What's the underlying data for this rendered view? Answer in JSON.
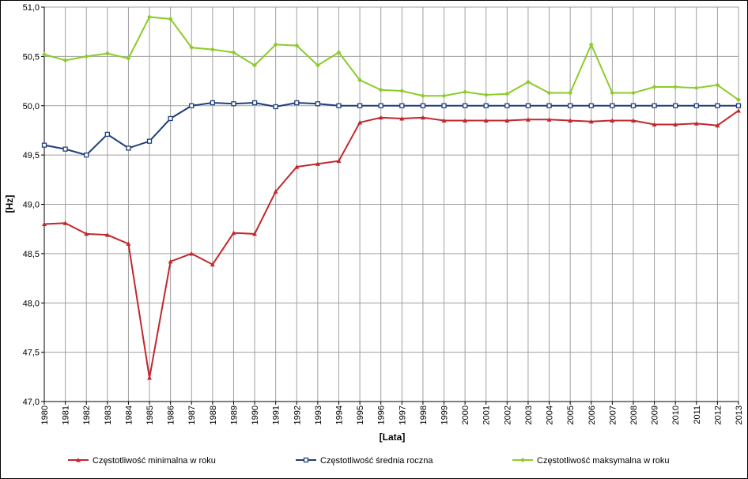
{
  "chart_data": {
    "type": "line",
    "xlabel": "[Lata]",
    "ylabel": "[Hz]",
    "ylim": [
      47.0,
      51.0
    ],
    "yticks": [
      "47,0",
      "47,5",
      "48,0",
      "48,5",
      "49,0",
      "49,5",
      "50,0",
      "50,5",
      "51,0"
    ],
    "grid": true,
    "legend_position": "bottom",
    "categories": [
      "1980",
      "1981",
      "1982",
      "1983",
      "1984",
      "1985",
      "1986",
      "1987",
      "1988",
      "1989",
      "1990",
      "1991",
      "1992",
      "1993",
      "1994",
      "1995",
      "1996",
      "1997",
      "1998",
      "1999",
      "2000",
      "2001",
      "2002",
      "2003",
      "2004",
      "2005",
      "2006",
      "2007",
      "2008",
      "2009",
      "2010",
      "2011",
      "2012",
      "2013"
    ],
    "series": [
      {
        "name": "Częstotliwość minimalna w roku",
        "color": "#c0282e",
        "marker": "triangle",
        "values": [
          48.8,
          48.81,
          48.7,
          48.69,
          48.6,
          47.24,
          48.42,
          48.5,
          48.39,
          48.71,
          48.7,
          49.13,
          49.38,
          49.41,
          49.44,
          49.83,
          49.88,
          49.87,
          49.88,
          49.85,
          49.85,
          49.85,
          49.85,
          49.86,
          49.86,
          49.85,
          49.84,
          49.85,
          49.85,
          49.81,
          49.81,
          49.82,
          49.8,
          49.95
        ]
      },
      {
        "name": "Częstotliwość średnia roczna",
        "color": "#1f3f7a",
        "marker": "square",
        "values": [
          49.6,
          49.56,
          49.5,
          49.71,
          49.57,
          49.64,
          49.87,
          50.0,
          50.03,
          50.02,
          50.03,
          49.99,
          50.03,
          50.02,
          50.0,
          50.0,
          50.0,
          50.0,
          50.0,
          50.0,
          50.0,
          50.0,
          50.0,
          50.0,
          50.0,
          50.0,
          50.0,
          50.0,
          50.0,
          50.0,
          50.0,
          50.0,
          50.0,
          50.0
        ]
      },
      {
        "name": "Częstotliwość maksymalna w roku",
        "color": "#8ccc2a",
        "marker": "diamond",
        "values": [
          50.52,
          50.46,
          50.5,
          50.53,
          50.48,
          50.9,
          50.88,
          50.59,
          50.57,
          50.54,
          50.41,
          50.62,
          50.61,
          50.41,
          50.54,
          50.26,
          50.16,
          50.15,
          50.1,
          50.1,
          50.14,
          50.11,
          50.12,
          50.24,
          50.13,
          50.13,
          50.62,
          50.13,
          50.13,
          50.19,
          50.19,
          50.18,
          50.21,
          50.06
        ]
      }
    ]
  }
}
